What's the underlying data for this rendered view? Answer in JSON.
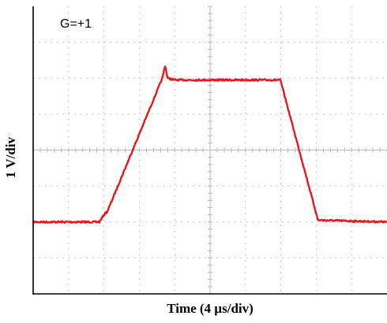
{
  "chart_data": {
    "type": "line",
    "annotation": "G=+1",
    "xlabel": "Time (4 µs/div)",
    "ylabel": "1 V/div",
    "xlim": [
      0,
      10
    ],
    "ylim": [
      0,
      8
    ],
    "x_units": "div",
    "y_units": "div",
    "grid": true,
    "series": [
      {
        "color": "#e8181e",
        "x": [
          0,
          1.87,
          2.0,
          2.1,
          3.65,
          3.73,
          3.8,
          4.0,
          6.98,
          7.0,
          8.05,
          10
        ],
        "y": [
          2.0,
          2.0,
          2.2,
          2.3,
          6.0,
          6.35,
          6.0,
          5.95,
          5.95,
          5.9,
          2.05,
          2.0
        ]
      }
    ],
    "colors": {
      "trace": "#e8181e",
      "grid": "#b8b8b8",
      "axis": "#000000"
    }
  }
}
